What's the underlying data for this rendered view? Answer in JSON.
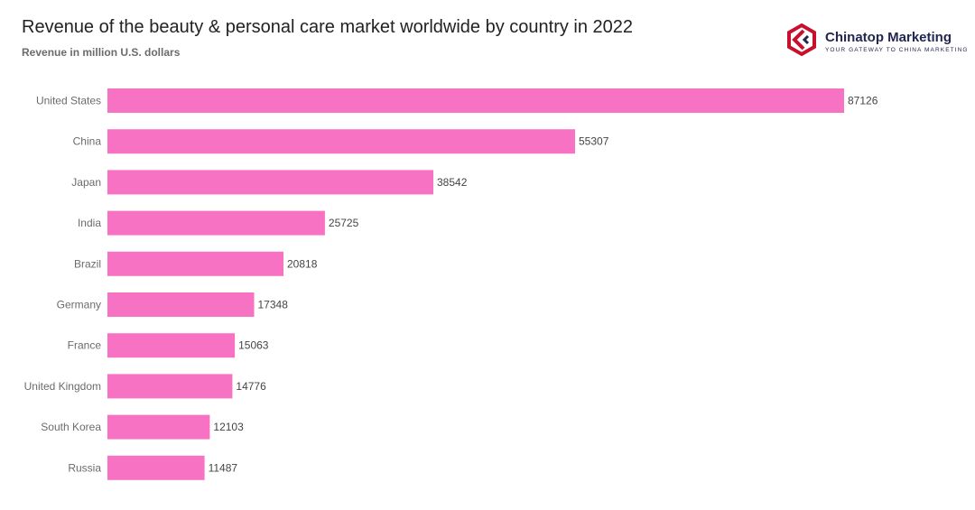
{
  "header": {
    "title": "Revenue of the beauty & personal care market worldwide by country in 2022",
    "subtitle": "Revenue in million U.S. dollars"
  },
  "brand": {
    "name": "Chinatop Marketing",
    "tagline": "YOUR GATEWAY TO CHINA MARKETING",
    "icon": "chinatop-logo-icon",
    "color": "#c8102e"
  },
  "chart_data": {
    "type": "bar",
    "orientation": "horizontal",
    "title": "Revenue of the beauty & personal care market worldwide by country in 2022",
    "subtitle": "Revenue in million U.S. dollars",
    "xlabel": "",
    "ylabel": "",
    "categories": [
      "United States",
      "China",
      "Japan",
      "India",
      "Brazil",
      "Germany",
      "France",
      "United Kingdom",
      "South Korea",
      "Russia"
    ],
    "values": [
      87126,
      55307,
      38542,
      25725,
      20818,
      17348,
      15063,
      14776,
      12103,
      11487
    ],
    "xlim": [
      0,
      87126
    ],
    "bar_color": "#f872c3",
    "grid": false,
    "legend": "none"
  }
}
